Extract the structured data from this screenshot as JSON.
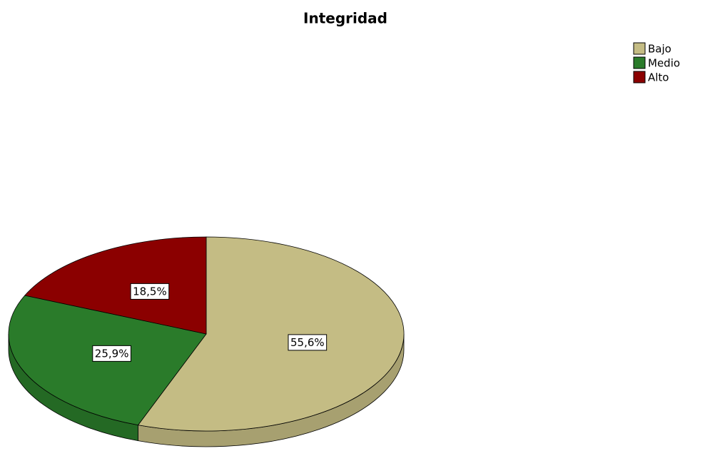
{
  "chart_data": {
    "type": "pie",
    "title": "Integridad",
    "categories": [
      "Bajo",
      "Medio",
      "Alto"
    ],
    "values": [
      55.6,
      25.9,
      18.5
    ],
    "value_labels": [
      "55,6%",
      "25,9%",
      "18,5%"
    ],
    "colors": [
      "#c4bc84",
      "#2a7b2a",
      "#8b0000"
    ],
    "legend": "top-right"
  }
}
